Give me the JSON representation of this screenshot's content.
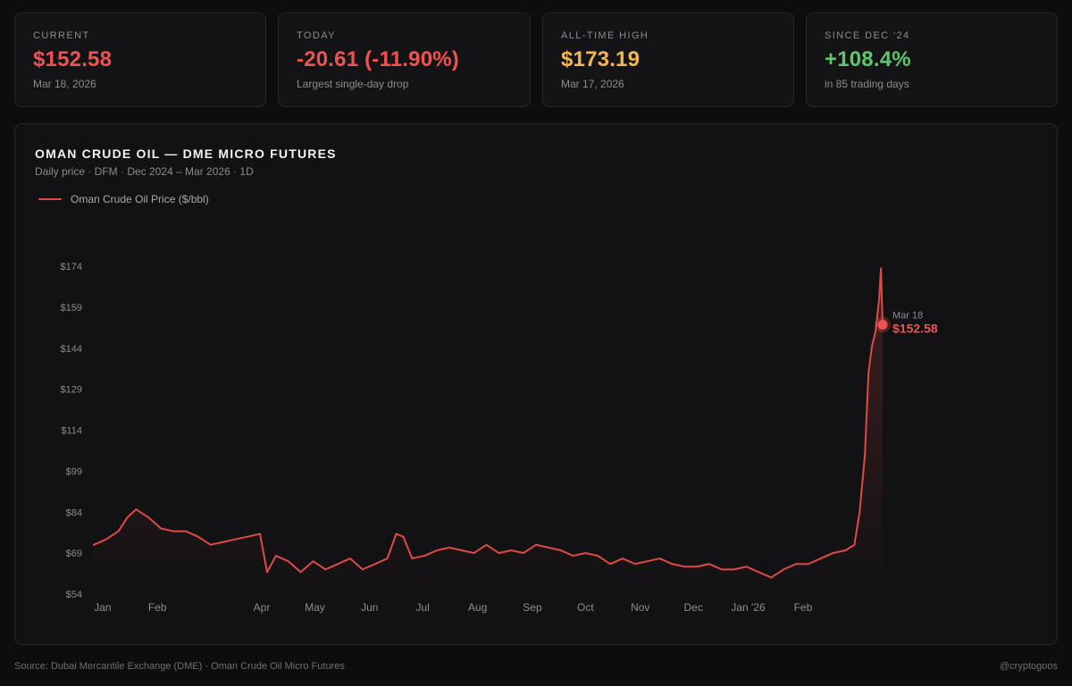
{
  "colors": {
    "line": "#e04a45",
    "red": "#ef5350",
    "amber": "#f5b74d",
    "green": "#5cc76b",
    "muted": "#8b8b90",
    "grid": "#1d1d20"
  },
  "stats": [
    {
      "label": "CURRENT",
      "value": "$152.58",
      "sub": "Mar 18, 2026",
      "color": "#ef5350"
    },
    {
      "label": "TODAY",
      "value": "-20.61 (-11.90%)",
      "sub": "Largest single-day drop",
      "color": "#ef5350"
    },
    {
      "label": "ALL-TIME HIGH",
      "value": "$173.19",
      "sub": "Mar 17, 2026",
      "color": "#f5b74d"
    },
    {
      "label": "SINCE DEC '24",
      "value": "+108.4%",
      "sub": "in 85 trading days",
      "color": "#5cc76b"
    }
  ],
  "chart_data": {
    "type": "line",
    "title": "OMAN CRUDE OIL — DME MICRO FUTURES",
    "subtitle": "Daily price · DFM · Dec 2024 – Mar 2026 · 1D",
    "legend": [
      "Oman Crude Oil Price ($/bbl)"
    ],
    "legend_position": "top-left",
    "grid": false,
    "yticks": [
      "$54",
      "$69",
      "$84",
      "$99",
      "$114",
      "$129",
      "$144",
      "$159",
      "$174"
    ],
    "ytick_values": [
      54,
      69,
      84,
      99,
      114,
      129,
      144,
      159,
      174
    ],
    "ylim": [
      54,
      174
    ],
    "xlim": [
      "2024-12-23",
      "2026-03-20"
    ],
    "xticks": [
      {
        "label": "Jan",
        "date": "2025-01-01"
      },
      {
        "label": "Feb",
        "date": "2025-02-01"
      },
      {
        "label": "Apr",
        "date": "2025-04-01"
      },
      {
        "label": "May",
        "date": "2025-05-01"
      },
      {
        "label": "Jun",
        "date": "2025-06-01"
      },
      {
        "label": "Jul",
        "date": "2025-07-01"
      },
      {
        "label": "Aug",
        "date": "2025-08-01"
      },
      {
        "label": "Sep",
        "date": "2025-09-01"
      },
      {
        "label": "Oct",
        "date": "2025-10-01"
      },
      {
        "label": "Nov",
        "date": "2025-11-01"
      },
      {
        "label": "Dec",
        "date": "2025-12-01"
      },
      {
        "label": "Jan '26",
        "date": "2026-01-01"
      },
      {
        "label": "Feb",
        "date": "2026-02-01"
      }
    ],
    "series": [
      {
        "name": "Oman Crude Oil Price ($/bbl)",
        "x": [
          "2024-12-27",
          "2025-01-03",
          "2025-01-10",
          "2025-01-15",
          "2025-01-20",
          "2025-01-27",
          "2025-02-03",
          "2025-02-10",
          "2025-02-17",
          "2025-02-24",
          "2025-03-03",
          "2025-03-10",
          "2025-03-17",
          "2025-03-24",
          "2025-03-31",
          "2025-04-04",
          "2025-04-09",
          "2025-04-16",
          "2025-04-23",
          "2025-04-30",
          "2025-05-07",
          "2025-05-14",
          "2025-05-21",
          "2025-05-28",
          "2025-06-04",
          "2025-06-11",
          "2025-06-16",
          "2025-06-20",
          "2025-06-25",
          "2025-07-02",
          "2025-07-09",
          "2025-07-16",
          "2025-07-23",
          "2025-07-30",
          "2025-08-06",
          "2025-08-13",
          "2025-08-20",
          "2025-08-27",
          "2025-09-03",
          "2025-09-10",
          "2025-09-17",
          "2025-09-24",
          "2025-10-01",
          "2025-10-08",
          "2025-10-15",
          "2025-10-22",
          "2025-10-29",
          "2025-11-05",
          "2025-11-12",
          "2025-11-19",
          "2025-11-26",
          "2025-12-03",
          "2025-12-10",
          "2025-12-17",
          "2025-12-24",
          "2025-12-31",
          "2026-01-07",
          "2026-01-14",
          "2026-01-21",
          "2026-01-28",
          "2026-02-04",
          "2026-02-11",
          "2026-02-18",
          "2026-02-25",
          "2026-03-02",
          "2026-03-05",
          "2026-03-08",
          "2026-03-10",
          "2026-03-12",
          "2026-03-14",
          "2026-03-16",
          "2026-03-17",
          "2026-03-18"
        ],
        "y": [
          72,
          74,
          77,
          82,
          85,
          82,
          78,
          77,
          77,
          75,
          72,
          73,
          74,
          75,
          76,
          62,
          68,
          66,
          62,
          66,
          63,
          65,
          67,
          63,
          65,
          67,
          76,
          75,
          67,
          68,
          70,
          71,
          70,
          69,
          72,
          69,
          70,
          69,
          72,
          71,
          70,
          68,
          69,
          68,
          65,
          67,
          65,
          66,
          67,
          65,
          64,
          64,
          65,
          63,
          63,
          64,
          62,
          60,
          63,
          65,
          65,
          67,
          69,
          70,
          72,
          84,
          105,
          135,
          145,
          150,
          162,
          173.19,
          152.58
        ]
      }
    ],
    "annotations": [
      {
        "date": "Mar 18",
        "value": "$152.58",
        "x": "2026-03-18",
        "y": 152.58
      }
    ]
  },
  "footer": {
    "source": "Source: Dubai Mercantile Exchange (DME) · Oman Crude Oil Micro Futures",
    "handle": "@cryptogoos"
  }
}
